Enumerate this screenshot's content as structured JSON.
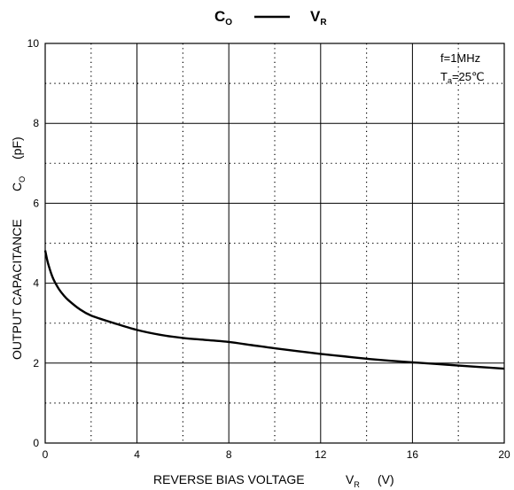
{
  "chart_data": {
    "type": "line",
    "title": {
      "left_main": "C",
      "left_sub": "O",
      "right_main": "V",
      "right_sub": "R"
    },
    "xlabel": {
      "text": "REVERSE BIAS VOLTAGE",
      "symbol": "V",
      "symbol_sub": "R",
      "unit": "(V)"
    },
    "ylabel": {
      "text": "OUTPUT  CAPACITANCE",
      "symbol": "C",
      "symbol_sub": "O",
      "unit": "(pF)"
    },
    "xlim": [
      0,
      20
    ],
    "ylim": [
      0,
      10
    ],
    "x_ticks": [
      0,
      4,
      8,
      12,
      16,
      20
    ],
    "y_ticks": [
      0,
      2,
      4,
      6,
      8,
      10
    ],
    "grid": {
      "major_x": [
        4,
        8,
        12,
        16
      ],
      "major_y": [
        2,
        4,
        6,
        8
      ],
      "minor_x": [
        2,
        6,
        10,
        14,
        18
      ],
      "minor_y": [
        1,
        3,
        5,
        7,
        9
      ]
    },
    "conditions": {
      "freq": "f=1MHz",
      "temp_main": "T",
      "temp_sub": "a",
      "temp_value": "=25℃"
    },
    "series": [
      {
        "x": [
          0,
          0.1,
          0.2,
          0.3,
          0.4,
          0.6,
          0.8,
          1.0,
          1.5,
          2.0,
          3.0,
          4.0,
          5.0,
          6.0,
          7.0,
          8.0,
          9.0,
          10.0,
          11.0,
          12.0,
          13.0,
          14.0,
          15.0,
          16.0,
          17.0,
          18.0,
          19.0,
          20.0
        ],
        "y": [
          4.82,
          4.55,
          4.35,
          4.18,
          4.05,
          3.85,
          3.7,
          3.58,
          3.35,
          3.19,
          3.0,
          2.83,
          2.71,
          2.63,
          2.58,
          2.53,
          2.45,
          2.37,
          2.3,
          2.23,
          2.17,
          2.11,
          2.06,
          2.02,
          1.98,
          1.94,
          1.9,
          1.86
        ]
      }
    ]
  },
  "colors": {
    "line": "#000000",
    "grid": "#000000",
    "background": "#ffffff"
  }
}
